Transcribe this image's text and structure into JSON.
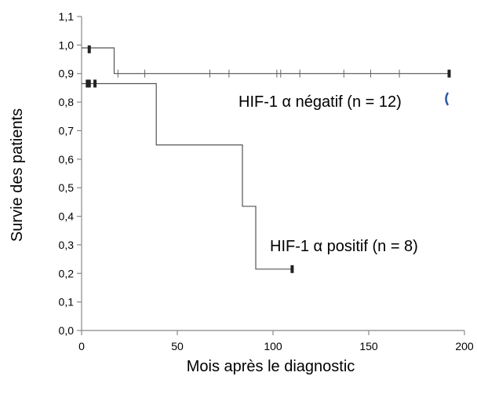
{
  "chart_data": {
    "type": "line",
    "step": true,
    "xlabel": "Mois après le diagnostic",
    "ylabel": "Survie des patients",
    "xlim": [
      0,
      200
    ],
    "ylim": [
      0,
      1.1
    ],
    "x_ticks": [
      "0",
      "50",
      "100",
      "150",
      "200"
    ],
    "x_tick_values": [
      0,
      50,
      100,
      150,
      200
    ],
    "y_ticks": [
      "0,0",
      "0,1",
      "0,2",
      "0,3",
      "0,4",
      "0,5",
      "0,6",
      "0,7",
      "0,8",
      "0,9",
      "1,0",
      "1,1"
    ],
    "y_tick_values": [
      0,
      0.1,
      0.2,
      0.3,
      0.4,
      0.5,
      0.6,
      0.7,
      0.8,
      0.9,
      1.0,
      1.1
    ],
    "grid": false,
    "series": [
      {
        "name": "HIF-1 α négatif (n = 12)",
        "color": "#555555",
        "x": [
          0,
          17,
          17,
          192
        ],
        "y": [
          0.99,
          0.99,
          0.9,
          0.9
        ],
        "censored": [
          {
            "x": 4,
            "y": 0.985
          },
          {
            "x": 19,
            "y": 0.9
          },
          {
            "x": 33,
            "y": 0.9
          },
          {
            "x": 67,
            "y": 0.9
          },
          {
            "x": 77,
            "y": 0.9
          },
          {
            "x": 102,
            "y": 0.9
          },
          {
            "x": 104,
            "y": 0.9
          },
          {
            "x": 114,
            "y": 0.9
          },
          {
            "x": 137,
            "y": 0.9
          },
          {
            "x": 151,
            "y": 0.9
          },
          {
            "x": 166,
            "y": 0.9
          },
          {
            "x": 192,
            "y": 0.9
          }
        ]
      },
      {
        "name": "HIF-1 α positif (n = 8)",
        "color": "#555555",
        "x": [
          0,
          39,
          39,
          84,
          84,
          91,
          91,
          110
        ],
        "y": [
          0.865,
          0.865,
          0.65,
          0.65,
          0.435,
          0.435,
          0.215,
          0.215
        ],
        "censored": [
          {
            "x": 3,
            "y": 0.865
          },
          {
            "x": 4,
            "y": 0.865
          },
          {
            "x": 7,
            "y": 0.865
          },
          {
            "x": 110,
            "y": 0.215
          }
        ]
      }
    ]
  }
}
